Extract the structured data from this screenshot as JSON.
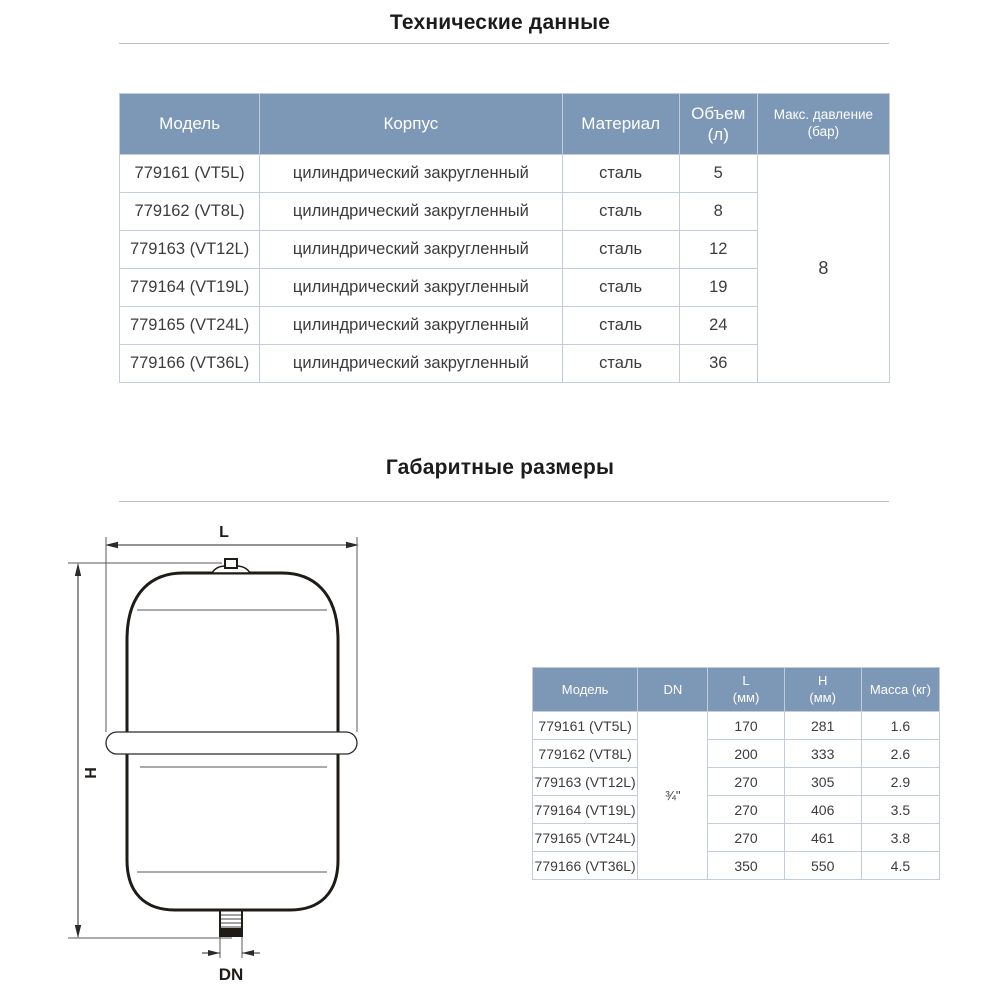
{
  "colors": {
    "header_bg": "#7d98b6",
    "header_text": "#ffffff",
    "table_border": "#c2cdd9",
    "body_text": "#3c3c3c",
    "title_text": "#1c1c1c",
    "rule_color": "#bdbdbd",
    "drawing_line": "#1f1b17",
    "page_bg": "#ffffff"
  },
  "section_technical": {
    "title": "Технические данные",
    "table": {
      "headers": {
        "model": "Модель",
        "body": "Корпус",
        "material": "Материал",
        "volume_line1": "Объем",
        "volume_line2": "(л)",
        "pressure_line1": "Макс. давление",
        "pressure_line2": "(бар)"
      },
      "max_pressure": "8",
      "rows": [
        {
          "model": "779161 (VT5L)",
          "body": "цилиндрический закругленный",
          "material": "сталь",
          "volume": "5"
        },
        {
          "model": "779162 (VT8L)",
          "body": "цилиндрический закругленный",
          "material": "сталь",
          "volume": "8"
        },
        {
          "model": "779163 (VT12L)",
          "body": "цилиндрический закругленный",
          "material": "сталь",
          "volume": "12"
        },
        {
          "model": "779164 (VT19L)",
          "body": "цилиндрический закругленный",
          "material": "сталь",
          "volume": "19"
        },
        {
          "model": "779165 (VT24L)",
          "body": "цилиндрический закругленный",
          "material": "сталь",
          "volume": "24"
        },
        {
          "model": "779166 (VT36L)",
          "body": "цилиндрический закругленный",
          "material": "сталь",
          "volume": "36"
        }
      ]
    }
  },
  "section_dimensions": {
    "title": "Габаритные размеры",
    "drawing": {
      "labels": {
        "l": "L",
        "h": "H",
        "dn": "DN"
      }
    },
    "table": {
      "headers": {
        "model": "Модель",
        "dn": "DN",
        "l_line1": "L",
        "l_line2": "(мм)",
        "h_line1": "H",
        "h_line2": "(мм)",
        "mass": "Масса (кг)"
      },
      "dn_value": "¾\"",
      "rows": [
        {
          "model": "779161 (VT5L)",
          "l": "170",
          "h": "281",
          "mass": "1.6"
        },
        {
          "model": "779162 (VT8L)",
          "l": "200",
          "h": "333",
          "mass": "2.6"
        },
        {
          "model": "779163 (VT12L)",
          "l": "270",
          "h": "305",
          "mass": "2.9"
        },
        {
          "model": "779164 (VT19L)",
          "l": "270",
          "h": "406",
          "mass": "3.5"
        },
        {
          "model": "779165 (VT24L)",
          "l": "270",
          "h": "461",
          "mass": "3.8"
        },
        {
          "model": "779166 (VT36L)",
          "l": "350",
          "h": "550",
          "mass": "4.5"
        }
      ]
    }
  }
}
